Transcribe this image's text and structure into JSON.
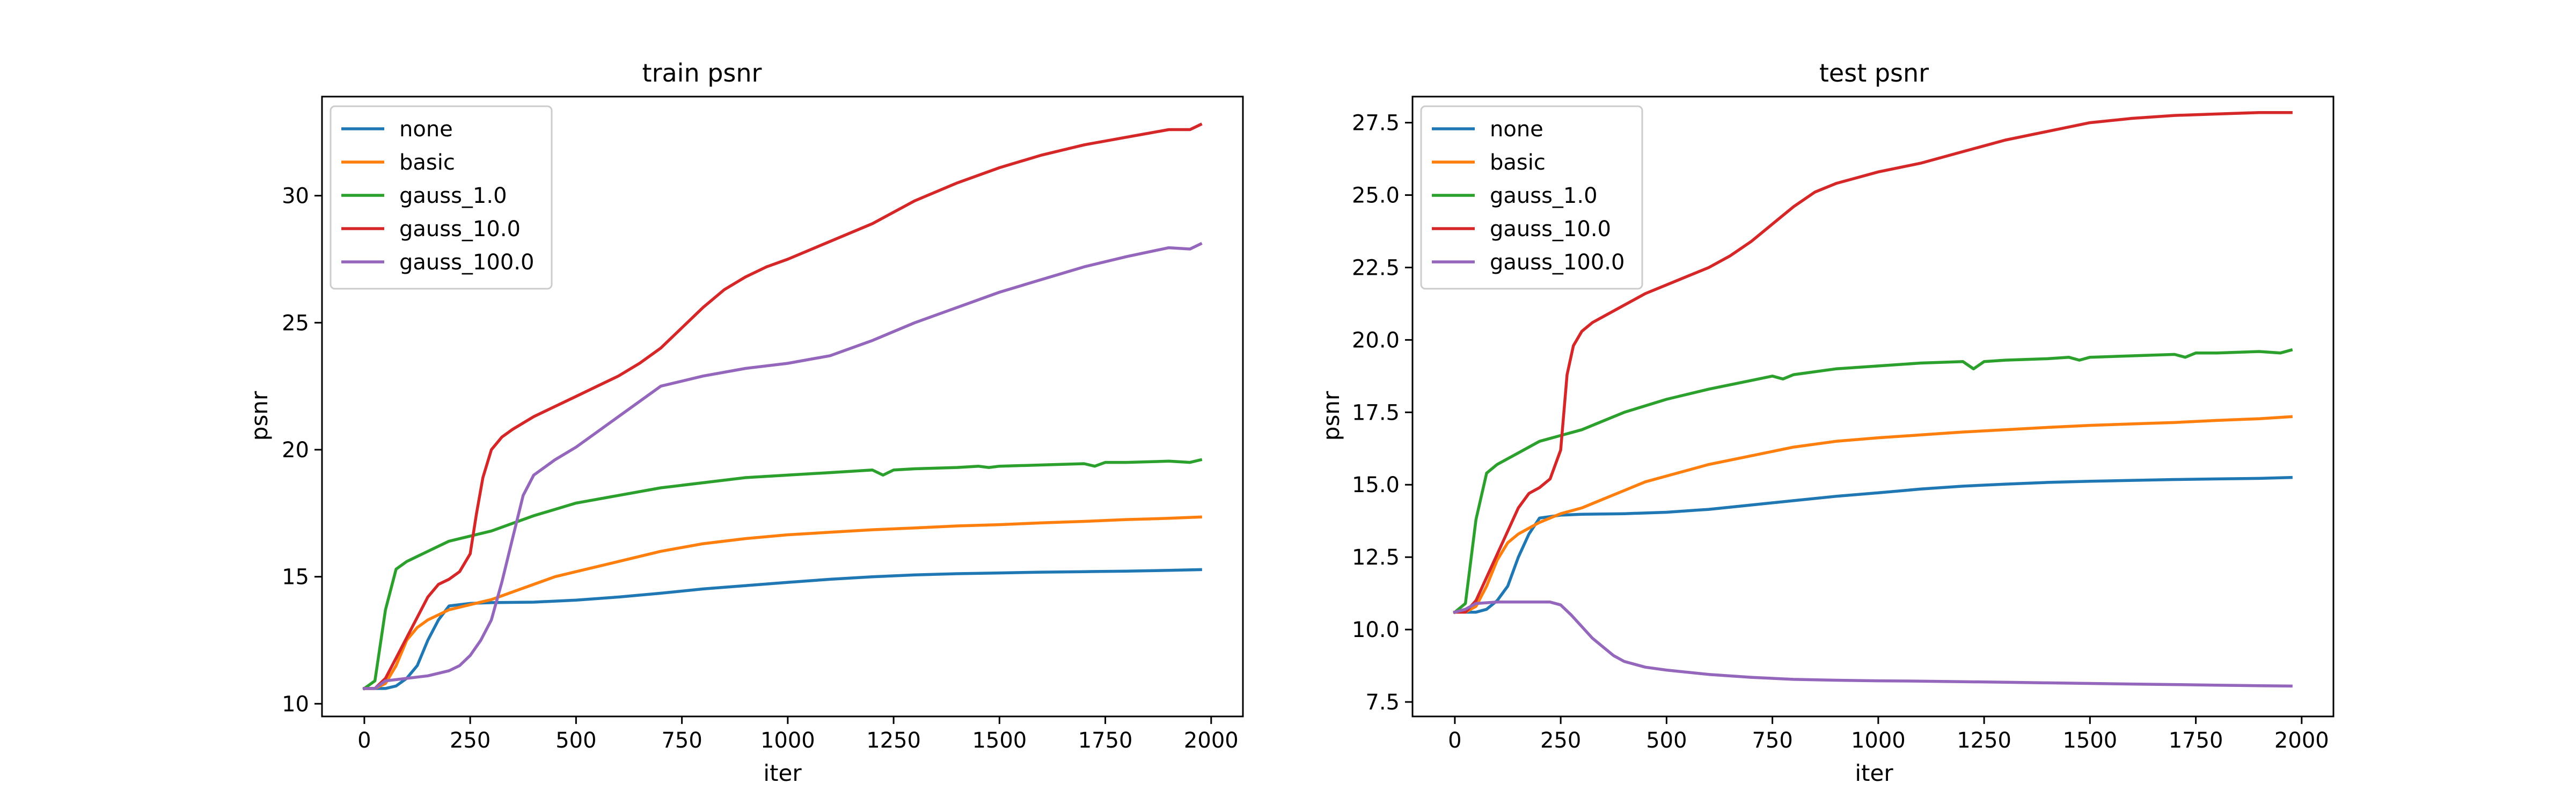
{
  "chart_data": [
    {
      "type": "line",
      "title": "train psnr",
      "xlabel": "iter",
      "ylabel": "psnr",
      "xlim": [
        -100,
        2075
      ],
      "ylim": [
        9.5,
        33.9
      ],
      "xticks": [
        0,
        250,
        500,
        750,
        1000,
        1250,
        1500,
        1750,
        2000
      ],
      "yticks": [
        10,
        15,
        20,
        25,
        30
      ],
      "legend_position": "top-left",
      "grid": false,
      "series": [
        {
          "name": "none",
          "color": "#1f77b4",
          "x": [
            0,
            25,
            50,
            75,
            100,
            125,
            150,
            175,
            200,
            225,
            250,
            300,
            400,
            500,
            600,
            700,
            800,
            900,
            1000,
            1100,
            1200,
            1300,
            1400,
            1500,
            1600,
            1700,
            1800,
            1900,
            1975
          ],
          "y": [
            10.6,
            10.6,
            10.6,
            10.7,
            11.0,
            11.5,
            12.5,
            13.3,
            13.85,
            13.9,
            13.95,
            13.98,
            14.0,
            14.08,
            14.2,
            14.35,
            14.52,
            14.65,
            14.78,
            14.9,
            15.0,
            15.07,
            15.12,
            15.15,
            15.18,
            15.2,
            15.22,
            15.25,
            15.28
          ]
        },
        {
          "name": "basic",
          "color": "#ff7f0e",
          "x": [
            0,
            25,
            50,
            75,
            100,
            125,
            150,
            175,
            200,
            225,
            250,
            300,
            350,
            400,
            450,
            500,
            600,
            700,
            800,
            900,
            1000,
            1100,
            1200,
            1300,
            1400,
            1500,
            1600,
            1700,
            1800,
            1900,
            1975
          ],
          "y": [
            10.6,
            10.6,
            10.8,
            11.5,
            12.5,
            13.0,
            13.3,
            13.5,
            13.7,
            13.8,
            13.9,
            14.1,
            14.4,
            14.7,
            15.0,
            15.2,
            15.6,
            16.0,
            16.3,
            16.5,
            16.65,
            16.75,
            16.85,
            16.92,
            17.0,
            17.05,
            17.12,
            17.18,
            17.25,
            17.3,
            17.35
          ]
        },
        {
          "name": "gauss_1.0",
          "color": "#2ca02c",
          "x": [
            0,
            25,
            50,
            75,
            100,
            150,
            200,
            250,
            300,
            400,
            500,
            600,
            700,
            800,
            900,
            1000,
            1100,
            1200,
            1225,
            1250,
            1300,
            1400,
            1450,
            1475,
            1500,
            1600,
            1700,
            1725,
            1750,
            1800,
            1900,
            1950,
            1975
          ],
          "y": [
            10.6,
            10.9,
            13.7,
            15.3,
            15.6,
            16.0,
            16.4,
            16.6,
            16.8,
            17.4,
            17.9,
            18.2,
            18.5,
            18.7,
            18.9,
            19.0,
            19.1,
            19.2,
            19.0,
            19.2,
            19.25,
            19.3,
            19.35,
            19.3,
            19.35,
            19.4,
            19.45,
            19.35,
            19.5,
            19.5,
            19.55,
            19.5,
            19.6
          ]
        },
        {
          "name": "gauss_10.0",
          "color": "#d62728",
          "x": [
            0,
            25,
            50,
            75,
            100,
            125,
            150,
            175,
            200,
            225,
            250,
            265,
            280,
            300,
            325,
            350,
            400,
            450,
            500,
            550,
            600,
            650,
            700,
            750,
            800,
            850,
            900,
            950,
            1000,
            1100,
            1200,
            1300,
            1400,
            1500,
            1600,
            1700,
            1800,
            1900,
            1950,
            1975
          ],
          "y": [
            10.6,
            10.6,
            11.0,
            11.8,
            12.6,
            13.4,
            14.2,
            14.7,
            14.9,
            15.2,
            15.9,
            17.5,
            18.9,
            20.0,
            20.5,
            20.8,
            21.3,
            21.7,
            22.1,
            22.5,
            22.9,
            23.4,
            24.0,
            24.8,
            25.6,
            26.3,
            26.8,
            27.2,
            27.5,
            28.2,
            28.9,
            29.8,
            30.5,
            31.1,
            31.6,
            32.0,
            32.3,
            32.6,
            32.6,
            32.8
          ]
        },
        {
          "name": "gauss_100.0",
          "color": "#9467bd",
          "x": [
            0,
            25,
            50,
            100,
            150,
            200,
            225,
            250,
            275,
            300,
            325,
            350,
            375,
            400,
            450,
            500,
            600,
            700,
            800,
            900,
            1000,
            1100,
            1200,
            1300,
            1400,
            1500,
            1600,
            1700,
            1800,
            1900,
            1950,
            1975
          ],
          "y": [
            10.6,
            10.6,
            10.9,
            11.0,
            11.1,
            11.3,
            11.5,
            11.9,
            12.5,
            13.3,
            14.8,
            16.5,
            18.2,
            19.0,
            19.6,
            20.1,
            21.3,
            22.5,
            22.9,
            23.2,
            23.4,
            23.7,
            24.3,
            25.0,
            25.6,
            26.2,
            26.7,
            27.2,
            27.6,
            27.95,
            27.9,
            28.1
          ]
        }
      ]
    },
    {
      "type": "line",
      "title": "test psnr",
      "xlabel": "iter",
      "ylabel": "psnr",
      "xlim": [
        -100,
        2075
      ],
      "ylim": [
        7.0,
        28.4
      ],
      "xticks": [
        0,
        250,
        500,
        750,
        1000,
        1250,
        1500,
        1750,
        2000
      ],
      "yticks": [
        7.5,
        10.0,
        12.5,
        15.0,
        17.5,
        20.0,
        22.5,
        25.0,
        27.5
      ],
      "legend_position": "top-left",
      "grid": false,
      "series": [
        {
          "name": "none",
          "color": "#1f77b4",
          "x": [
            0,
            25,
            50,
            75,
            100,
            125,
            150,
            175,
            200,
            225,
            250,
            300,
            400,
            500,
            600,
            700,
            800,
            900,
            1000,
            1100,
            1200,
            1300,
            1400,
            1500,
            1600,
            1700,
            1800,
            1900,
            1975
          ],
          "y": [
            10.6,
            10.6,
            10.6,
            10.7,
            11.0,
            11.5,
            12.5,
            13.3,
            13.85,
            13.9,
            13.95,
            13.98,
            14.0,
            14.05,
            14.15,
            14.3,
            14.45,
            14.6,
            14.72,
            14.85,
            14.95,
            15.02,
            15.08,
            15.12,
            15.15,
            15.18,
            15.2,
            15.22,
            15.25
          ]
        },
        {
          "name": "basic",
          "color": "#ff7f0e",
          "x": [
            0,
            25,
            50,
            75,
            100,
            125,
            150,
            175,
            200,
            225,
            250,
            300,
            350,
            400,
            450,
            500,
            600,
            700,
            800,
            900,
            1000,
            1100,
            1200,
            1300,
            1400,
            1500,
            1600,
            1700,
            1800,
            1900,
            1975
          ],
          "y": [
            10.6,
            10.6,
            10.8,
            11.5,
            12.4,
            13.0,
            13.3,
            13.5,
            13.7,
            13.85,
            14.0,
            14.2,
            14.5,
            14.8,
            15.1,
            15.3,
            15.7,
            16.0,
            16.3,
            16.5,
            16.62,
            16.72,
            16.82,
            16.9,
            16.98,
            17.05,
            17.1,
            17.15,
            17.22,
            17.28,
            17.35
          ]
        },
        {
          "name": "gauss_1.0",
          "color": "#2ca02c",
          "x": [
            0,
            25,
            50,
            75,
            100,
            150,
            200,
            250,
            300,
            400,
            500,
            600,
            700,
            750,
            775,
            800,
            900,
            1000,
            1100,
            1200,
            1225,
            1250,
            1300,
            1400,
            1450,
            1475,
            1500,
            1600,
            1700,
            1725,
            1750,
            1800,
            1900,
            1950,
            1975
          ],
          "y": [
            10.6,
            10.9,
            13.8,
            15.4,
            15.7,
            16.1,
            16.5,
            16.7,
            16.9,
            17.5,
            17.95,
            18.3,
            18.6,
            18.75,
            18.65,
            18.8,
            19.0,
            19.1,
            19.2,
            19.25,
            19.0,
            19.25,
            19.3,
            19.35,
            19.4,
            19.3,
            19.4,
            19.45,
            19.5,
            19.4,
            19.55,
            19.55,
            19.6,
            19.55,
            19.65
          ]
        },
        {
          "name": "gauss_10.0",
          "color": "#d62728",
          "x": [
            0,
            25,
            50,
            75,
            100,
            125,
            150,
            175,
            200,
            225,
            250,
            265,
            280,
            300,
            325,
            350,
            400,
            450,
            500,
            550,
            600,
            650,
            700,
            750,
            800,
            850,
            900,
            950,
            1000,
            1100,
            1200,
            1300,
            1400,
            1500,
            1600,
            1700,
            1800,
            1900,
            1975
          ],
          "y": [
            10.6,
            10.6,
            11.0,
            11.8,
            12.6,
            13.4,
            14.2,
            14.7,
            14.9,
            15.2,
            16.2,
            18.8,
            19.8,
            20.3,
            20.6,
            20.8,
            21.2,
            21.6,
            21.9,
            22.2,
            22.5,
            22.9,
            23.4,
            24.0,
            24.6,
            25.1,
            25.4,
            25.6,
            25.8,
            26.1,
            26.5,
            26.9,
            27.2,
            27.5,
            27.65,
            27.75,
            27.8,
            27.85,
            27.85
          ]
        },
        {
          "name": "gauss_100.0",
          "color": "#9467bd",
          "x": [
            0,
            25,
            50,
            100,
            150,
            200,
            225,
            250,
            275,
            300,
            325,
            350,
            375,
            400,
            450,
            500,
            600,
            700,
            800,
            900,
            1000,
            1100,
            1200,
            1300,
            1400,
            1500,
            1600,
            1700,
            1800,
            1900,
            1975
          ],
          "y": [
            10.6,
            10.7,
            10.9,
            10.95,
            10.95,
            10.95,
            10.95,
            10.85,
            10.5,
            10.1,
            9.7,
            9.4,
            9.1,
            8.9,
            8.7,
            8.6,
            8.45,
            8.35,
            8.28,
            8.25,
            8.23,
            8.22,
            8.2,
            8.18,
            8.16,
            8.14,
            8.12,
            8.1,
            8.08,
            8.06,
            8.05
          ]
        }
      ]
    }
  ]
}
